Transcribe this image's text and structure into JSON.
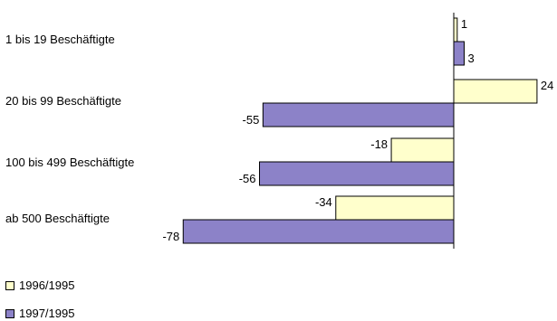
{
  "chart_data": {
    "type": "bar",
    "orientation": "horizontal",
    "categories": [
      "1 bis 19 Beschäftigte",
      "20 bis 99 Beschäftigte",
      "100 bis 499 Beschäftigte",
      "ab 500 Beschäftigte"
    ],
    "series": [
      {
        "name": "1996/1995",
        "values": [
          1,
          24,
          -18,
          -34
        ],
        "color": "#ffffcc"
      },
      {
        "name": "1997/1995",
        "values": [
          3,
          -55,
          -56,
          -78
        ],
        "color": "#8c82c8"
      }
    ],
    "xlim": [
      -78,
      24
    ],
    "grid": false,
    "legend_position": "bottom-left"
  }
}
